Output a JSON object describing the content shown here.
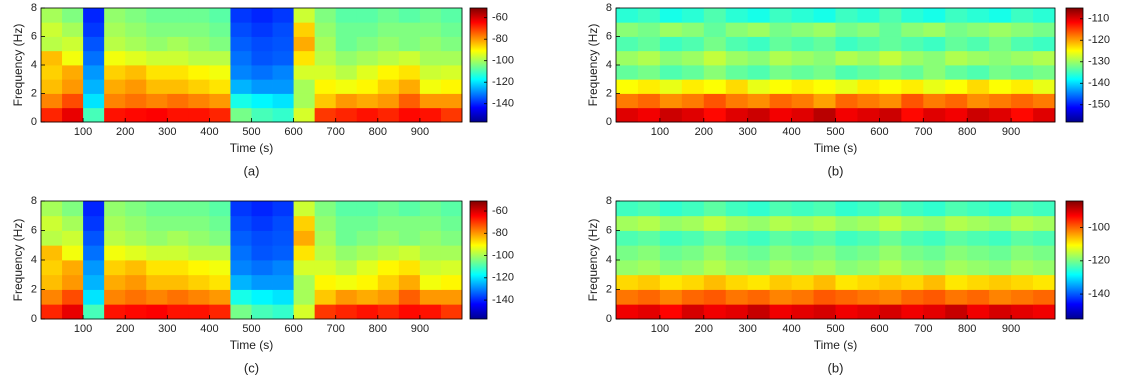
{
  "chart_data": [
    {
      "type": "heatmap",
      "caption": "(a)",
      "xlabel": "Time (s)",
      "ylabel": "Frequency (Hz)",
      "colormap": "jet",
      "x": [
        25,
        75,
        125,
        175,
        225,
        275,
        325,
        375,
        425,
        475,
        525,
        575,
        625,
        675,
        725,
        775,
        825,
        875,
        925,
        975
      ],
      "y": [
        0.5,
        1.5,
        2.5,
        3.5,
        4.5,
        5.5,
        6.5,
        7.5
      ],
      "xlim": [
        0,
        1000
      ],
      "xticks": [
        100,
        200,
        300,
        400,
        500,
        600,
        700,
        800,
        900
      ],
      "ylim": [
        0,
        8
      ],
      "yticks": [
        0,
        2,
        4,
        6,
        8
      ],
      "zlim": [
        -157,
        -51
      ],
      "zticks": [
        -60,
        -80,
        -100,
        -120,
        -140
      ],
      "z": [
        [
          -68,
          -62,
          -110,
          -66,
          -65,
          -64,
          -66,
          -66,
          -68,
          -105,
          -110,
          -112,
          -95,
          -70,
          -68,
          -66,
          -68,
          -65,
          -66,
          -70
        ],
        [
          -78,
          -72,
          -120,
          -78,
          -76,
          -78,
          -76,
          -78,
          -80,
          -115,
          -118,
          -120,
          -100,
          -85,
          -80,
          -82,
          -80,
          -74,
          -80,
          -80
        ],
        [
          -84,
          -80,
          -125,
          -82,
          -80,
          -84,
          -84,
          -86,
          -88,
          -125,
          -128,
          -128,
          -100,
          -90,
          -92,
          -90,
          -86,
          -82,
          -92,
          -90
        ],
        [
          -86,
          -82,
          -128,
          -86,
          -84,
          -88,
          -88,
          -90,
          -92,
          -130,
          -132,
          -130,
          -95,
          -95,
          -98,
          -94,
          -90,
          -88,
          -96,
          -95
        ],
        [
          -84,
          -92,
          -132,
          -92,
          -94,
          -96,
          -96,
          -98,
          -98,
          -132,
          -135,
          -134,
          -88,
          -98,
          -102,
          -100,
          -98,
          -96,
          -100,
          -100
        ],
        [
          -98,
          -96,
          -135,
          -98,
          -100,
          -102,
          -100,
          -102,
          -104,
          -134,
          -136,
          -135,
          -82,
          -100,
          -106,
          -104,
          -102,
          -104,
          -102,
          -104
        ],
        [
          -96,
          -100,
          -138,
          -100,
          -102,
          -104,
          -104,
          -104,
          -106,
          -136,
          -138,
          -136,
          -86,
          -102,
          -106,
          -106,
          -104,
          -104,
          -104,
          -106
        ],
        [
          -100,
          -104,
          -140,
          -102,
          -104,
          -106,
          -106,
          -106,
          -108,
          -138,
          -140,
          -138,
          -96,
          -104,
          -108,
          -108,
          -106,
          -108,
          -106,
          -108
        ]
      ]
    },
    {
      "type": "heatmap",
      "caption": "(b)",
      "xlabel": "Time (s)",
      "ylabel": "Frequency (Hz)",
      "colormap": "jet",
      "x": [
        25,
        75,
        125,
        175,
        225,
        275,
        325,
        375,
        425,
        475,
        525,
        575,
        625,
        675,
        725,
        775,
        825,
        875,
        925,
        975
      ],
      "y": [
        0.5,
        1.5,
        2.5,
        3.5,
        4.5,
        5.5,
        6.5,
        7.5
      ],
      "xlim": [
        0,
        1000
      ],
      "xticks": [
        100,
        200,
        300,
        400,
        500,
        600,
        700,
        800,
        900
      ],
      "ylim": [
        0,
        8
      ],
      "yticks": [
        0,
        2,
        4,
        6,
        8
      ],
      "zlim": [
        -158,
        -105
      ],
      "zticks": [
        -110,
        -120,
        -130,
        -140,
        -150
      ],
      "z": [
        [
          -110,
          -111,
          -109,
          -110,
          -112,
          -110,
          -109,
          -111,
          -110,
          -108,
          -111,
          -110,
          -109,
          -112,
          -110,
          -111,
          -109,
          -110,
          -112,
          -110
        ],
        [
          -118,
          -117,
          -119,
          -118,
          -116,
          -118,
          -119,
          -117,
          -118,
          -120,
          -117,
          -118,
          -119,
          -116,
          -118,
          -117,
          -119,
          -118,
          -117,
          -118
        ],
        [
          -125,
          -124,
          -126,
          -124,
          -125,
          -123,
          -126,
          -125,
          -124,
          -125,
          -126,
          -124,
          -125,
          -124,
          -126,
          -125,
          -123,
          -125,
          -124,
          -126
        ],
        [
          -133,
          -132,
          -134,
          -133,
          -131,
          -133,
          -134,
          -132,
          -133,
          -132,
          -134,
          -133,
          -132,
          -133,
          -131,
          -133,
          -134,
          -132,
          -133,
          -132
        ],
        [
          -130,
          -129,
          -131,
          -130,
          -128,
          -130,
          -131,
          -129,
          -130,
          -131,
          -129,
          -130,
          -128,
          -130,
          -131,
          -129,
          -130,
          -131,
          -130,
          -129
        ],
        [
          -134,
          -133,
          -135,
          -134,
          -132,
          -134,
          -135,
          -133,
          -134,
          -133,
          -135,
          -134,
          -133,
          -134,
          -135,
          -133,
          -134,
          -132,
          -134,
          -135
        ],
        [
          -131,
          -132,
          -130,
          -131,
          -133,
          -131,
          -130,
          -132,
          -131,
          -130,
          -132,
          -131,
          -133,
          -131,
          -130,
          -132,
          -131,
          -130,
          -131,
          -132
        ],
        [
          -136,
          -135,
          -137,
          -136,
          -134,
          -136,
          -137,
          -135,
          -136,
          -137,
          -135,
          -136,
          -134,
          -136,
          -137,
          -135,
          -136,
          -137,
          -135,
          -136
        ]
      ]
    },
    {
      "type": "heatmap",
      "caption": "(c)",
      "xlabel": "Time (s)",
      "ylabel": "Frequency (Hz)",
      "colormap": "jet",
      "x": [
        25,
        75,
        125,
        175,
        225,
        275,
        325,
        375,
        425,
        475,
        525,
        575,
        625,
        675,
        725,
        775,
        825,
        875,
        925,
        975
      ],
      "y": [
        0.5,
        1.5,
        2.5,
        3.5,
        4.5,
        5.5,
        6.5,
        7.5
      ],
      "xlim": [
        0,
        1000
      ],
      "xticks": [
        100,
        200,
        300,
        400,
        500,
        600,
        700,
        800,
        900
      ],
      "ylim": [
        0,
        8
      ],
      "yticks": [
        0,
        2,
        4,
        6,
        8
      ],
      "zlim": [
        -157,
        -51
      ],
      "zticks": [
        -60,
        -80,
        -100,
        -120,
        -140
      ],
      "z": [
        [
          -68,
          -62,
          -110,
          -66,
          -65,
          -64,
          -66,
          -66,
          -68,
          -105,
          -110,
          -112,
          -95,
          -70,
          -68,
          -66,
          -68,
          -65,
          -66,
          -70
        ],
        [
          -78,
          -72,
          -120,
          -78,
          -76,
          -78,
          -76,
          -78,
          -80,
          -115,
          -118,
          -120,
          -100,
          -85,
          -80,
          -82,
          -80,
          -74,
          -80,
          -80
        ],
        [
          -84,
          -80,
          -125,
          -82,
          -80,
          -84,
          -84,
          -86,
          -88,
          -125,
          -128,
          -128,
          -100,
          -90,
          -92,
          -90,
          -86,
          -82,
          -92,
          -90
        ],
        [
          -86,
          -82,
          -128,
          -86,
          -84,
          -88,
          -88,
          -90,
          -92,
          -130,
          -132,
          -130,
          -95,
          -95,
          -98,
          -94,
          -90,
          -88,
          -96,
          -95
        ],
        [
          -84,
          -92,
          -132,
          -92,
          -94,
          -96,
          -96,
          -98,
          -98,
          -132,
          -135,
          -134,
          -88,
          -98,
          -102,
          -100,
          -98,
          -96,
          -100,
          -100
        ],
        [
          -98,
          -96,
          -135,
          -98,
          -100,
          -102,
          -100,
          -102,
          -104,
          -134,
          -136,
          -135,
          -82,
          -100,
          -106,
          -104,
          -102,
          -104,
          -102,
          -104
        ],
        [
          -96,
          -100,
          -138,
          -100,
          -102,
          -104,
          -104,
          -104,
          -106,
          -136,
          -138,
          -136,
          -86,
          -102,
          -106,
          -106,
          -104,
          -104,
          -104,
          -106
        ],
        [
          -100,
          -104,
          -140,
          -102,
          -104,
          -106,
          -106,
          -106,
          -108,
          -138,
          -140,
          -138,
          -96,
          -104,
          -108,
          -108,
          -106,
          -108,
          -106,
          -108
        ]
      ]
    },
    {
      "type": "heatmap",
      "caption": "(b)",
      "xlabel": "Time (s)",
      "ylabel": "Frequency (Hz)",
      "colormap": "jet",
      "x": [
        25,
        75,
        125,
        175,
        225,
        275,
        325,
        375,
        425,
        475,
        525,
        575,
        625,
        675,
        725,
        775,
        825,
        875,
        925,
        975
      ],
      "y": [
        0.5,
        1.5,
        2.5,
        3.5,
        4.5,
        5.5,
        6.5,
        7.5
      ],
      "xlim": [
        0,
        1000
      ],
      "xticks": [
        100,
        200,
        300,
        400,
        500,
        600,
        700,
        800,
        900
      ],
      "ylim": [
        0,
        8
      ],
      "yticks": [
        0,
        2,
        4,
        6,
        8
      ],
      "zlim": [
        -155,
        -84
      ],
      "zticks": [
        -100,
        -120,
        -140
      ],
      "z": [
        [
          -92,
          -91,
          -93,
          -90,
          -92,
          -91,
          -89,
          -92,
          -91,
          -90,
          -92,
          -91,
          -90,
          -92,
          -91,
          -89,
          -92,
          -90,
          -91,
          -92
        ],
        [
          -101,
          -100,
          -102,
          -100,
          -99,
          -101,
          -100,
          -102,
          -101,
          -99,
          -100,
          -101,
          -102,
          -100,
          -99,
          -101,
          -100,
          -102,
          -101,
          -100
        ],
        [
          -108,
          -107,
          -109,
          -108,
          -106,
          -108,
          -109,
          -107,
          -108,
          -106,
          -109,
          -108,
          -107,
          -108,
          -106,
          -109,
          -108,
          -107,
          -108,
          -109
        ],
        [
          -118,
          -117,
          -119,
          -118,
          -116,
          -118,
          -119,
          -117,
          -118,
          -117,
          -119,
          -118,
          -116,
          -118,
          -119,
          -117,
          -118,
          -119,
          -117,
          -118
        ],
        [
          -120,
          -119,
          -121,
          -120,
          -118,
          -120,
          -121,
          -119,
          -120,
          -119,
          -121,
          -120,
          -118,
          -120,
          -121,
          -119,
          -120,
          -121,
          -119,
          -120
        ],
        [
          -123,
          -122,
          -124,
          -123,
          -121,
          -123,
          -124,
          -122,
          -123,
          -122,
          -124,
          -123,
          -121,
          -123,
          -124,
          -122,
          -123,
          -124,
          -122,
          -123
        ],
        [
          -117,
          -116,
          -118,
          -117,
          -115,
          -117,
          -118,
          -116,
          -117,
          -116,
          -118,
          -117,
          -115,
          -117,
          -118,
          -116,
          -117,
          -118,
          -116,
          -117
        ],
        [
          -124,
          -123,
          -125,
          -124,
          -122,
          -124,
          -125,
          -123,
          -124,
          -123,
          -125,
          -124,
          -122,
          -124,
          -125,
          -123,
          -124,
          -125,
          -123,
          -124
        ]
      ]
    }
  ]
}
